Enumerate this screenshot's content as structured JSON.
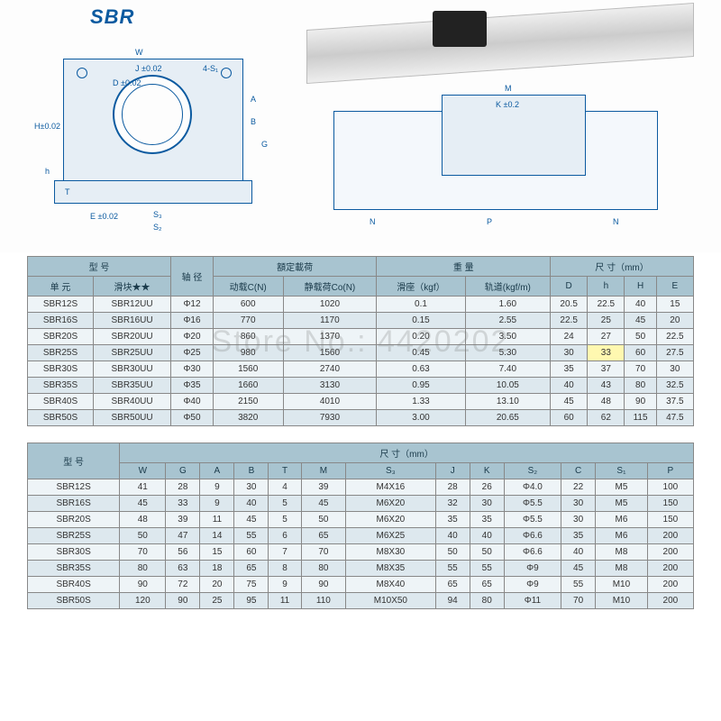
{
  "title": "SBR",
  "watermark": "Store No.: 4420202",
  "diagram_labels": {
    "left": {
      "W": "W",
      "J": "J ±0.02",
      "D": "D ±0.02",
      "S4": "4-S₁",
      "A": "A",
      "B": "B",
      "H": "H±0.02",
      "h": "h",
      "G": "G",
      "E": "E ±0.02",
      "S3": "S₃",
      "S2": "S₂",
      "T": "T"
    },
    "right": {
      "M": "M",
      "K": "K ±0.2",
      "N1": "N",
      "P": "P",
      "N2": "N"
    }
  },
  "table1": {
    "headers": {
      "model": "型  号",
      "shaft": "轴 径",
      "load": "額定載荷",
      "weight": "重  量",
      "dims": "尺 寸（mm）",
      "unit": "单 元",
      "slider": "滑块★★",
      "dynC": "动载C(N)",
      "statCo": "静载荷Co(N)",
      "wSlider": "滑座（kgf）",
      "wRail": "轨道(kgf/m)",
      "D": "D",
      "h": "h",
      "H": "H",
      "E": "E"
    },
    "rows": [
      {
        "unit": "SBR12S",
        "slider": "SBR12UU",
        "shaft": "Φ12",
        "c": "600",
        "co": "1020",
        "ws": "0.1",
        "wr": "1.60",
        "D": "20.5",
        "h": "22.5",
        "H": "40",
        "E": "15"
      },
      {
        "unit": "SBR16S",
        "slider": "SBR16UU",
        "shaft": "Φ16",
        "c": "770",
        "co": "1170",
        "ws": "0.15",
        "wr": "2.55",
        "D": "22.5",
        "h": "25",
        "H": "45",
        "E": "20"
      },
      {
        "unit": "SBR20S",
        "slider": "SBR20UU",
        "shaft": "Φ20",
        "c": "860",
        "co": "1370",
        "ws": "0.20",
        "wr": "3.50",
        "D": "24",
        "h": "27",
        "H": "50",
        "E": "22.5"
      },
      {
        "unit": "SBR25S",
        "slider": "SBR25UU",
        "shaft": "Φ25",
        "c": "980",
        "co": "1560",
        "ws": "0.45",
        "wr": "5.30",
        "D": "30",
        "h": "33",
        "H": "60",
        "E": "27.5",
        "hl": "h"
      },
      {
        "unit": "SBR30S",
        "slider": "SBR30UU",
        "shaft": "Φ30",
        "c": "1560",
        "co": "2740",
        "ws": "0.63",
        "wr": "7.40",
        "D": "35",
        "h": "37",
        "H": "70",
        "E": "30"
      },
      {
        "unit": "SBR35S",
        "slider": "SBR35UU",
        "shaft": "Φ35",
        "c": "1660",
        "co": "3130",
        "ws": "0.95",
        "wr": "10.05",
        "D": "40",
        "h": "43",
        "H": "80",
        "E": "32.5"
      },
      {
        "unit": "SBR40S",
        "slider": "SBR40UU",
        "shaft": "Φ40",
        "c": "2150",
        "co": "4010",
        "ws": "1.33",
        "wr": "13.10",
        "D": "45",
        "h": "48",
        "H": "90",
        "E": "37.5"
      },
      {
        "unit": "SBR50S",
        "slider": "SBR50UU",
        "shaft": "Φ50",
        "c": "3820",
        "co": "7930",
        "ws": "3.00",
        "wr": "20.65",
        "D": "60",
        "h": "62",
        "H": "115",
        "E": "47.5"
      }
    ]
  },
  "table2": {
    "headers": {
      "model": "型  号",
      "dims": "尺 寸（mm）",
      "W": "W",
      "G": "G",
      "A": "A",
      "B": "B",
      "T": "T",
      "M": "M",
      "S3": "S₃",
      "J": "J",
      "K": "K",
      "S2": "S₂",
      "C": "C",
      "S1": "S₁",
      "P": "P"
    },
    "rows": [
      {
        "m": "SBR12S",
        "W": "41",
        "G": "28",
        "A": "9",
        "B": "30",
        "T": "4",
        "M": "39",
        "S3": "M4X16",
        "J": "28",
        "K": "26",
        "S2": "Φ4.0",
        "C": "22",
        "S1": "M5",
        "P": "100"
      },
      {
        "m": "SBR16S",
        "W": "45",
        "G": "33",
        "A": "9",
        "B": "40",
        "T": "5",
        "M": "45",
        "S3": "M6X20",
        "J": "32",
        "K": "30",
        "S2": "Φ5.5",
        "C": "30",
        "S1": "M5",
        "P": "150"
      },
      {
        "m": "SBR20S",
        "W": "48",
        "G": "39",
        "A": "11",
        "B": "45",
        "T": "5",
        "M": "50",
        "S3": "M6X20",
        "J": "35",
        "K": "35",
        "S2": "Φ5.5",
        "C": "30",
        "S1": "M6",
        "P": "150"
      },
      {
        "m": "SBR25S",
        "W": "50",
        "G": "47",
        "A": "14",
        "B": "55",
        "T": "6",
        "M": "65",
        "S3": "M6X25",
        "J": "40",
        "K": "40",
        "S2": "Φ6.6",
        "C": "35",
        "S1": "M6",
        "P": "200"
      },
      {
        "m": "SBR30S",
        "W": "70",
        "G": "56",
        "A": "15",
        "B": "60",
        "T": "7",
        "M": "70",
        "S3": "M8X30",
        "J": "50",
        "K": "50",
        "S2": "Φ6.6",
        "C": "40",
        "S1": "M8",
        "P": "200"
      },
      {
        "m": "SBR35S",
        "W": "80",
        "G": "63",
        "A": "18",
        "B": "65",
        "T": "8",
        "M": "80",
        "S3": "M8X35",
        "J": "55",
        "K": "55",
        "S2": "Φ9",
        "C": "45",
        "S1": "M8",
        "P": "200"
      },
      {
        "m": "SBR40S",
        "W": "90",
        "G": "72",
        "A": "20",
        "B": "75",
        "T": "9",
        "M": "90",
        "S3": "M8X40",
        "J": "65",
        "K": "65",
        "S2": "Φ9",
        "C": "55",
        "S1": "M10",
        "P": "200"
      },
      {
        "m": "SBR50S",
        "W": "120",
        "G": "90",
        "A": "25",
        "B": "95",
        "T": "11",
        "M": "110",
        "S3": "M10X50",
        "J": "94",
        "K": "80",
        "S2": "Φ11",
        "C": "70",
        "S1": "M10",
        "P": "200"
      }
    ]
  },
  "colors": {
    "header_bg": "#a8c4d0",
    "row_light": "#eef4f7",
    "row_dark": "#dde8ee",
    "line": "#0b5aa0",
    "highlight": "#fff8b0"
  }
}
